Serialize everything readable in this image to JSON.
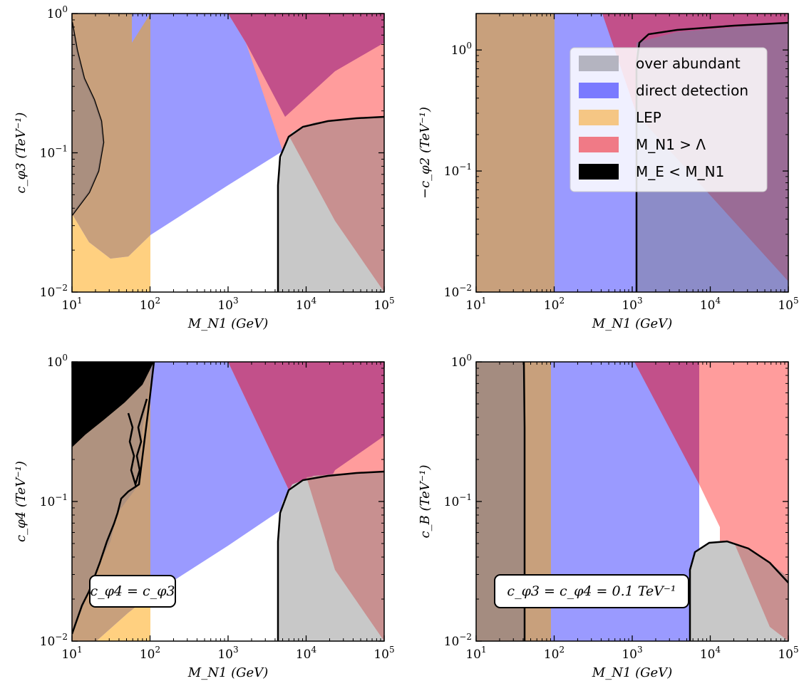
{
  "colors": {
    "over_abundant": "#bfbfbf",
    "direct_detection": "#8080ff",
    "LEP": "#ffc870",
    "mn1_gt_lambda": "#ff7f86",
    "me_lt_mn1": "#000000",
    "overlap_dd_lambda": "#c2508a"
  },
  "legend": [
    {
      "key": "over_abundant",
      "label": "over abundant"
    },
    {
      "key": "direct_detection",
      "label": "direct detection"
    },
    {
      "key": "LEP",
      "label": "LEP"
    },
    {
      "key": "mn1_gt_lambda",
      "label": "M_N1 > Λ"
    },
    {
      "key": "me_lt_mn1",
      "label": "M_E < M_N1"
    }
  ],
  "chart_data": [
    {
      "id": "top-left",
      "type": "area",
      "xlabel": "M_N1 (GeV)",
      "ylabel": "c_φ3 (TeV⁻¹)",
      "xscale": "log",
      "yscale": "log",
      "xlim": [
        10,
        100000
      ],
      "ylim": [
        0.01,
        1
      ],
      "xticks": [
        "10^1",
        "10^2",
        "10^3",
        "10^4",
        "10^5"
      ],
      "yticks": [
        "10^-2",
        "10^-1",
        "10^0"
      ],
      "regions": {
        "LEP": {
          "x_max": 100
        },
        "direct_detection_lower_boundary": [
          [
            30,
            0.018
          ],
          [
            100,
            0.026
          ],
          [
            1000,
            0.07
          ],
          [
            6000,
            0.18
          ]
        ],
        "direct_detection_upper_left": [
          [
            60,
            1
          ],
          [
            60,
            0.3
          ]
        ],
        "mn1_gt_lambda_boundary": [
          [
            1000,
            1
          ],
          [
            6000,
            0.18
          ],
          [
            100000,
            0.01
          ]
        ],
        "over_abundant_boundary": [
          [
            4500,
            0.01
          ],
          [
            4700,
            0.05
          ],
          [
            6000,
            0.1
          ],
          [
            10000,
            0.16
          ],
          [
            100000,
            0.19
          ]
        ],
        "left_contour": [
          [
            10,
            0.035
          ],
          [
            25,
            0.15
          ],
          [
            13,
            0.5
          ],
          [
            10,
            0.9
          ]
        ]
      }
    },
    {
      "id": "top-right",
      "type": "area",
      "xlabel": "M_N1 (GeV)",
      "ylabel": "−c_φ2 (TeV⁻¹)",
      "xscale": "log",
      "yscale": "log",
      "xlim": [
        10,
        100000
      ],
      "ylim": [
        0.01,
        2
      ],
      "xticks": [
        "10^1",
        "10^2",
        "10^3",
        "10^4",
        "10^5"
      ],
      "yticks": [
        "10^-2",
        "10^-1",
        "10^0"
      ],
      "regions": {
        "LEP": {
          "x_max": 100
        },
        "direct_detection": {
          "x_max": 100000
        },
        "mn1_gt_lambda_boundary": [
          [
            400,
            2
          ],
          [
            100000,
            0.02
          ]
        ],
        "over_abundant_boundary": [
          [
            1100,
            0.01
          ],
          [
            1150,
            1.0
          ],
          [
            3000,
            1.5
          ],
          [
            100000,
            1.8
          ]
        ]
      },
      "legend_position": "top-right"
    },
    {
      "id": "bottom-left",
      "type": "area",
      "xlabel": "M_N1 (GeV)",
      "ylabel": "c_φ4 (TeV⁻¹)",
      "xscale": "log",
      "yscale": "log",
      "xlim": [
        10,
        100000
      ],
      "ylim": [
        0.01,
        1
      ],
      "xticks": [
        "10^1",
        "10^2",
        "10^3",
        "10^4",
        "10^5"
      ],
      "yticks": [
        "10^-2",
        "10^-1",
        "10^0"
      ],
      "annotation": "c_φ4 = c_φ3",
      "regions": {
        "LEP": {
          "x_max": 100
        },
        "me_lt_mn1_boundary": [
          [
            10,
            0.17
          ],
          [
            30,
            0.4
          ],
          [
            70,
            0.7
          ],
          [
            100,
            1
          ]
        ],
        "direct_detection_lower_boundary": [
          [
            20,
            0.01
          ],
          [
            100,
            0.02
          ],
          [
            1000,
            0.06
          ],
          [
            10000,
            0.15
          ],
          [
            100000,
            0.33
          ]
        ],
        "mn1_gt_lambda_boundary": [
          [
            1000,
            1
          ],
          [
            10000,
            0.1
          ],
          [
            100000,
            0.01
          ]
        ],
        "over_abundant_boundary": [
          [
            4500,
            0.01
          ],
          [
            4700,
            0.05
          ],
          [
            6000,
            0.09
          ],
          [
            10000,
            0.14
          ],
          [
            100000,
            0.16
          ]
        ]
      }
    },
    {
      "id": "bottom-right",
      "type": "area",
      "xlabel": "M_N1 (GeV)",
      "ylabel": "c_B (TeV⁻¹)",
      "xscale": "log",
      "yscale": "log",
      "xlim": [
        10,
        100000
      ],
      "ylim": [
        0.01,
        1
      ],
      "xticks": [
        "10^1",
        "10^2",
        "10^3",
        "10^4",
        "10^5"
      ],
      "yticks": [
        "10^-2",
        "10^-1",
        "10^0"
      ],
      "annotation": "c_φ3 = c_φ4 = 0.1 TeV⁻¹",
      "regions": {
        "LEP": {
          "x_max": 90
        },
        "direct_detection": {
          "x_max": 7000
        },
        "mn1_gt_lambda": {
          "x_min": 7000
        },
        "mn1_gt_lambda_boundary": [
          [
            800,
            1
          ],
          [
            7000,
            0.11
          ]
        ],
        "over_abundant_boundary": [
          [
            5500,
            0.01
          ],
          [
            6500,
            0.035
          ],
          [
            12000,
            0.05
          ],
          [
            100000,
            0.025
          ]
        ],
        "left_contour_x": 42
      }
    }
  ]
}
